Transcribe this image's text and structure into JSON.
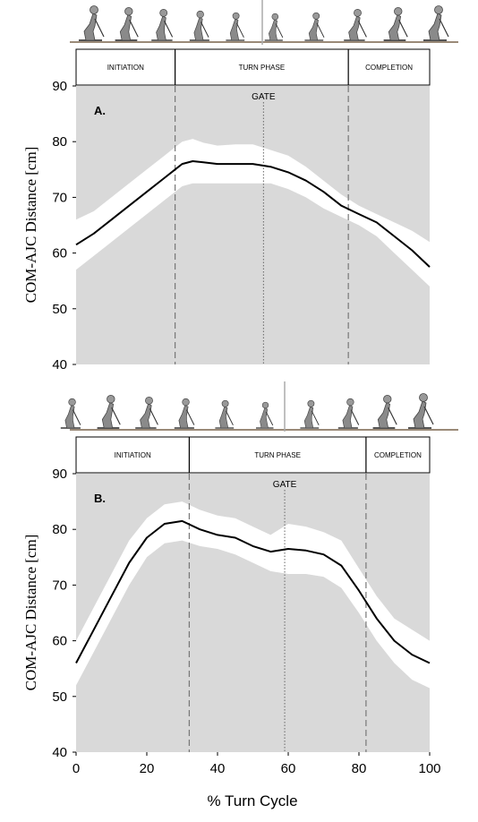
{
  "figure": {
    "xlabel": "% Turn Cycle",
    "x_tick_labels": [
      "0",
      "20",
      "40",
      "60",
      "80",
      "100"
    ]
  },
  "chart_data": [
    {
      "type": "line",
      "panel_label": "A.",
      "ylabel": "COM-AJC Distance [cm]",
      "xlim": [
        0,
        100
      ],
      "ylim": [
        40,
        90
      ],
      "y_ticks": [
        40,
        50,
        60,
        70,
        80,
        90
      ],
      "y_tick_labels": [
        "40",
        "50",
        "60",
        "70",
        "80",
        "90"
      ],
      "phases": [
        {
          "label": "INITIATION",
          "start": 0,
          "end": 28
        },
        {
          "label": "TURN PHASE",
          "start": 28,
          "end": 77
        },
        {
          "label": "COMPLETION",
          "start": 77,
          "end": 100
        }
      ],
      "phase_boundaries": [
        28,
        77
      ],
      "gate": {
        "label": "GATE",
        "x": 53
      },
      "mean": {
        "x": [
          0,
          5,
          10,
          15,
          20,
          25,
          28,
          30,
          33,
          36,
          40,
          45,
          50,
          55,
          60,
          65,
          70,
          75,
          80,
          85,
          90,
          95,
          100
        ],
        "y": [
          61.5,
          63.5,
          66,
          68.5,
          71,
          73.5,
          75,
          76,
          76.5,
          76.3,
          76,
          76,
          76,
          75.5,
          74.5,
          73,
          71,
          68.5,
          67,
          65.5,
          63,
          60.5,
          57.5
        ]
      },
      "upper": {
        "x": [
          0,
          5,
          10,
          15,
          20,
          25,
          28,
          30,
          33,
          36,
          40,
          45,
          50,
          55,
          60,
          65,
          70,
          75,
          80,
          85,
          90,
          95,
          100
        ],
        "y": [
          66,
          67.5,
          70,
          72.5,
          75,
          77.5,
          79,
          80,
          80.5,
          79.8,
          79.3,
          79.5,
          79.5,
          78.5,
          77.5,
          75.5,
          73,
          70.5,
          68.5,
          67,
          65.5,
          64,
          62
        ]
      },
      "lower": {
        "x": [
          0,
          5,
          10,
          15,
          20,
          25,
          28,
          30,
          33,
          36,
          40,
          45,
          50,
          55,
          60,
          65,
          70,
          75,
          80,
          85,
          90,
          95,
          100
        ],
        "y": [
          57,
          59.5,
          62,
          64.5,
          67,
          69.5,
          71,
          72,
          72.5,
          72.5,
          72.5,
          72.5,
          72.5,
          72.5,
          71.5,
          70,
          68,
          66.5,
          65,
          63,
          60,
          57,
          54
        ]
      }
    },
    {
      "type": "line",
      "panel_label": "B.",
      "ylabel": "COM-AJC Distance [cm]",
      "xlim": [
        0,
        100
      ],
      "ylim": [
        40,
        90
      ],
      "y_ticks": [
        40,
        50,
        60,
        70,
        80,
        90
      ],
      "y_tick_labels": [
        "40",
        "50",
        "60",
        "70",
        "80",
        "90"
      ],
      "phases": [
        {
          "label": "INITIATION",
          "start": 0,
          "end": 32
        },
        {
          "label": "TURN PHASE",
          "start": 32,
          "end": 82
        },
        {
          "label": "COMPLETION",
          "start": 82,
          "end": 100
        }
      ],
      "phase_boundaries": [
        32,
        82
      ],
      "gate": {
        "label": "GATE",
        "x": 59
      },
      "mean": {
        "x": [
          0,
          5,
          10,
          15,
          20,
          25,
          30,
          35,
          40,
          45,
          50,
          55,
          60,
          65,
          70,
          75,
          80,
          85,
          90,
          95,
          100
        ],
        "y": [
          56,
          62,
          68,
          74,
          78.5,
          81,
          81.5,
          80,
          79,
          78.5,
          77,
          76,
          76.5,
          76.2,
          75.5,
          73.5,
          69,
          64,
          60,
          57.5,
          56
        ]
      },
      "upper": {
        "x": [
          0,
          5,
          10,
          15,
          20,
          25,
          30,
          35,
          40,
          45,
          50,
          55,
          60,
          65,
          70,
          75,
          80,
          85,
          90,
          95,
          100
        ],
        "y": [
          60,
          66,
          72,
          78,
          82,
          84.5,
          85,
          83.5,
          82.5,
          82,
          80.5,
          79,
          81,
          80.5,
          79.5,
          78,
          73,
          68,
          64,
          62,
          60
        ]
      },
      "lower": {
        "x": [
          0,
          5,
          10,
          15,
          20,
          25,
          30,
          35,
          40,
          45,
          50,
          55,
          60,
          65,
          70,
          75,
          80,
          85,
          90,
          95,
          100
        ],
        "y": [
          52,
          58,
          64,
          70,
          75,
          77.5,
          78,
          77,
          76.5,
          75.5,
          74,
          72.5,
          72,
          72,
          71.5,
          69.5,
          65,
          60,
          56,
          53,
          51.5
        ]
      }
    }
  ]
}
